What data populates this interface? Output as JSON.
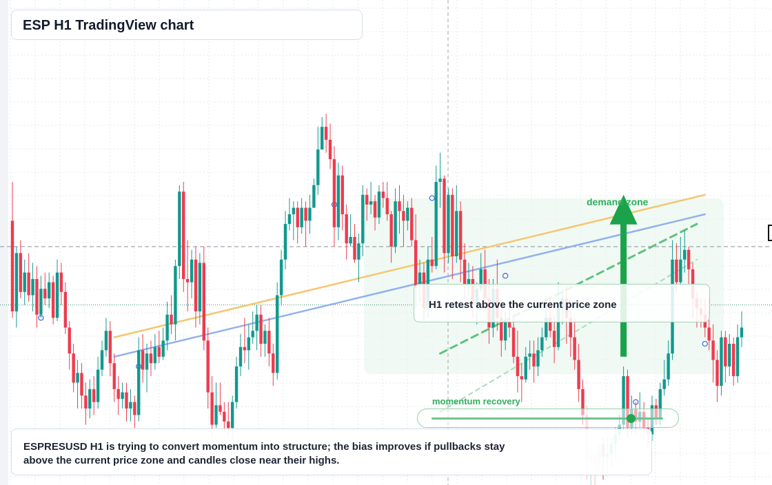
{
  "title": "ESP H1 TradingView chart",
  "colors": {
    "bull": "#11998e",
    "bear": "#ee3b4f",
    "trend_orange": "#f4c66f",
    "trend_blue": "#8fb1ef",
    "accent_green": "#1aa34a"
  },
  "annotations": {
    "demand_label": "demand zone",
    "retest_label": "H1 retest above the current price zone",
    "momentum_label": "momentum recovery",
    "momentum_level": 0.86,
    "summary": "ESPRESUSD H1 is trying to convert momentum into structure; the bias improves if pullbacks stay above the current price zone and candles close near their highs."
  },
  "chart_data": {
    "type": "candlestick",
    "symbol": "ESPRESUSD",
    "timeframe": "H1",
    "ylim": [
      0,
      100
    ],
    "grid": true,
    "candles": [
      [
        68,
        40,
        80,
        38
      ],
      [
        40,
        58,
        60,
        35
      ],
      [
        58,
        46,
        62,
        44
      ],
      [
        46,
        52,
        56,
        42
      ],
      [
        52,
        45,
        58,
        43
      ],
      [
        45,
        50,
        55,
        40
      ],
      [
        50,
        39,
        54,
        35
      ],
      [
        39,
        47,
        51,
        38
      ],
      [
        47,
        44,
        52,
        42
      ],
      [
        44,
        49,
        52,
        41
      ],
      [
        49,
        38,
        51,
        36
      ],
      [
        38,
        52,
        56,
        37
      ],
      [
        52,
        46,
        55,
        42
      ],
      [
        46,
        35,
        49,
        33
      ],
      [
        35,
        27,
        37,
        22
      ],
      [
        27,
        18,
        30,
        15
      ],
      [
        18,
        21,
        25,
        10
      ],
      [
        21,
        14,
        24,
        10
      ],
      [
        14,
        10,
        18,
        5
      ],
      [
        10,
        16,
        19,
        7
      ],
      [
        16,
        12,
        20,
        8
      ],
      [
        12,
        22,
        26,
        10
      ],
      [
        22,
        28,
        31,
        20
      ],
      [
        28,
        34,
        38,
        26
      ],
      [
        34,
        24,
        37,
        20
      ],
      [
        24,
        16,
        27,
        12
      ],
      [
        16,
        13,
        20,
        8
      ],
      [
        13,
        15,
        18,
        10
      ],
      [
        15,
        10,
        18,
        6
      ],
      [
        10,
        12,
        16,
        6
      ],
      [
        12,
        8,
        14,
        4
      ],
      [
        8,
        28,
        32,
        6
      ],
      [
        28,
        22,
        33,
        18
      ],
      [
        22,
        27,
        30,
        15
      ],
      [
        27,
        24,
        31,
        20
      ],
      [
        24,
        29,
        33,
        22
      ],
      [
        29,
        26,
        34,
        24
      ],
      [
        26,
        31,
        35,
        25
      ],
      [
        31,
        39,
        43,
        28
      ],
      [
        39,
        36,
        45,
        33
      ],
      [
        36,
        54,
        56,
        31
      ],
      [
        54,
        77,
        79,
        50
      ],
      [
        77,
        50,
        80,
        46
      ],
      [
        50,
        49,
        62,
        40
      ],
      [
        49,
        56,
        59,
        44
      ],
      [
        56,
        40,
        60,
        35
      ],
      [
        40,
        55,
        58,
        36
      ],
      [
        55,
        31,
        60,
        28
      ],
      [
        31,
        15,
        35,
        10
      ],
      [
        15,
        5,
        20,
        1
      ],
      [
        5,
        11,
        18,
        4
      ],
      [
        11,
        9,
        18,
        8
      ],
      [
        9,
        6,
        12,
        3
      ],
      [
        6,
        4,
        12,
        1
      ],
      [
        4,
        12,
        14,
        0
      ],
      [
        12,
        23,
        26,
        10
      ],
      [
        23,
        29,
        33,
        20
      ],
      [
        29,
        28,
        38,
        24
      ],
      [
        28,
        32,
        36,
        22
      ],
      [
        32,
        34,
        40,
        30
      ],
      [
        34,
        39,
        42,
        28
      ],
      [
        39,
        30,
        42,
        26
      ],
      [
        30,
        34,
        36,
        26
      ],
      [
        34,
        27,
        38,
        23
      ],
      [
        27,
        21,
        30,
        17
      ],
      [
        21,
        45,
        49,
        19
      ],
      [
        45,
        56,
        59,
        42
      ],
      [
        56,
        67,
        71,
        53
      ],
      [
        67,
        70,
        75,
        65
      ],
      [
        70,
        72,
        74,
        62
      ],
      [
        72,
        66,
        74,
        61
      ],
      [
        66,
        72,
        75,
        64
      ],
      [
        72,
        68,
        74,
        60
      ],
      [
        68,
        72,
        76,
        64
      ],
      [
        72,
        79,
        81,
        72
      ],
      [
        79,
        90,
        97,
        76
      ],
      [
        90,
        97,
        100,
        90
      ],
      [
        97,
        93,
        101,
        89
      ],
      [
        93,
        87,
        98,
        84
      ],
      [
        87,
        66,
        91,
        60
      ],
      [
        66,
        82,
        86,
        62
      ],
      [
        82,
        70,
        85,
        65
      ],
      [
        70,
        61,
        73,
        56
      ],
      [
        61,
        63,
        70,
        60
      ],
      [
        63,
        56,
        67,
        55
      ],
      [
        56,
        61,
        64,
        49
      ],
      [
        61,
        76,
        79,
        57
      ],
      [
        76,
        73,
        78,
        68
      ],
      [
        73,
        74,
        80,
        70
      ],
      [
        74,
        69,
        76,
        65
      ],
      [
        69,
        77,
        79,
        67
      ],
      [
        77,
        75,
        80,
        72
      ],
      [
        75,
        70,
        80,
        68
      ],
      [
        70,
        60,
        71,
        55
      ],
      [
        60,
        74,
        78,
        58
      ],
      [
        74,
        71,
        79,
        64
      ],
      [
        71,
        68,
        76,
        60
      ],
      [
        68,
        72,
        74,
        65
      ],
      [
        72,
        62,
        75,
        60
      ],
      [
        62,
        48,
        70,
        41
      ],
      [
        48,
        52,
        56,
        43
      ],
      [
        52,
        41,
        55,
        37
      ],
      [
        41,
        56,
        60,
        38
      ],
      [
        56,
        54,
        63,
        52
      ],
      [
        54,
        80,
        85,
        53
      ],
      [
        80,
        81,
        89,
        72
      ],
      [
        81,
        58,
        82,
        52
      ],
      [
        58,
        76,
        78,
        55
      ],
      [
        76,
        57,
        78,
        50
      ],
      [
        57,
        71,
        79,
        55
      ],
      [
        71,
        56,
        74,
        49
      ],
      [
        56,
        48,
        61,
        44
      ],
      [
        48,
        50,
        55,
        45
      ],
      [
        50,
        42,
        54,
        38
      ],
      [
        42,
        47,
        49,
        36
      ],
      [
        47,
        53,
        58,
        46
      ],
      [
        53,
        44,
        59,
        40
      ],
      [
        44,
        35,
        50,
        30
      ],
      [
        35,
        47,
        50,
        32
      ],
      [
        47,
        38,
        56,
        34
      ],
      [
        38,
        31,
        42,
        26
      ],
      [
        31,
        37,
        40,
        28
      ],
      [
        37,
        35,
        42,
        32
      ],
      [
        35,
        26,
        39,
        24
      ],
      [
        26,
        20,
        34,
        15
      ],
      [
        20,
        19,
        24,
        12
      ],
      [
        19,
        26,
        29,
        18
      ],
      [
        26,
        27,
        31,
        22
      ],
      [
        27,
        23,
        31,
        18
      ],
      [
        23,
        28,
        32,
        20
      ],
      [
        28,
        32,
        35,
        26
      ],
      [
        32,
        38,
        45,
        31
      ],
      [
        38,
        34,
        44,
        32
      ],
      [
        34,
        29,
        39,
        24
      ],
      [
        29,
        41,
        49,
        28
      ],
      [
        41,
        44,
        47,
        36
      ],
      [
        44,
        38,
        48,
        30
      ],
      [
        38,
        32,
        40,
        26
      ],
      [
        32,
        25,
        38,
        22
      ],
      [
        25,
        16,
        30,
        12
      ],
      [
        16,
        8,
        19,
        5
      ],
      [
        8,
        -6,
        11,
        -12
      ],
      [
        -6,
        -4,
        0,
        -14
      ],
      [
        -4,
        -8,
        -2,
        -14
      ],
      [
        -8,
        -1,
        2,
        -10
      ],
      [
        -1,
        -5,
        1,
        -12
      ],
      [
        -5,
        -4,
        1,
        -10
      ],
      [
        -4,
        -1,
        1,
        -8
      ],
      [
        -1,
        2,
        4,
        -5
      ],
      [
        2,
        5,
        8,
        0
      ],
      [
        5,
        20,
        23,
        3
      ],
      [
        20,
        4,
        22,
        1
      ],
      [
        4,
        10,
        14,
        2
      ],
      [
        10,
        6,
        12,
        2
      ],
      [
        6,
        9,
        15,
        4
      ],
      [
        9,
        4,
        12,
        0
      ],
      [
        4,
        2,
        7,
        -2
      ],
      [
        2,
        11,
        14,
        0
      ],
      [
        11,
        7,
        13,
        5
      ],
      [
        7,
        16,
        18,
        5
      ],
      [
        16,
        19,
        25,
        14
      ],
      [
        19,
        27,
        31,
        17
      ],
      [
        27,
        56,
        62,
        25
      ],
      [
        56,
        49,
        61,
        46
      ],
      [
        49,
        56,
        63,
        48
      ],
      [
        56,
        59,
        65,
        52
      ],
      [
        59,
        53,
        60,
        48
      ],
      [
        53,
        44,
        55,
        38
      ],
      [
        44,
        41,
        46,
        35
      ],
      [
        41,
        39,
        44,
        35
      ],
      [
        39,
        35,
        44,
        32
      ],
      [
        35,
        31,
        44,
        28
      ],
      [
        31,
        25,
        36,
        18
      ],
      [
        25,
        17,
        28,
        12
      ],
      [
        17,
        32,
        34,
        14
      ],
      [
        32,
        23,
        34,
        18
      ],
      [
        23,
        30,
        33,
        20
      ],
      [
        30,
        20,
        32,
        17
      ],
      [
        20,
        32,
        36,
        18
      ],
      [
        32,
        35,
        40,
        29
      ]
    ],
    "trendlines": [
      {
        "style": "solid",
        "color": "orange",
        "from": [
          25,
          32
        ],
        "to": [
          170,
          76
        ]
      },
      {
        "style": "solid",
        "color": "blue",
        "from": [
          25,
          26
        ],
        "to": [
          170,
          70
        ]
      },
      {
        "style": "dashed",
        "color": "green",
        "from": [
          105,
          27
        ],
        "to": [
          168,
          67
        ]
      },
      {
        "style": "dashed",
        "color": "light-green",
        "from": [
          105,
          9
        ],
        "to": [
          168,
          56
        ]
      }
    ],
    "price_line": 60,
    "current_line": 42,
    "arrow": {
      "x": 150,
      "from": 26,
      "to": 76
    }
  }
}
